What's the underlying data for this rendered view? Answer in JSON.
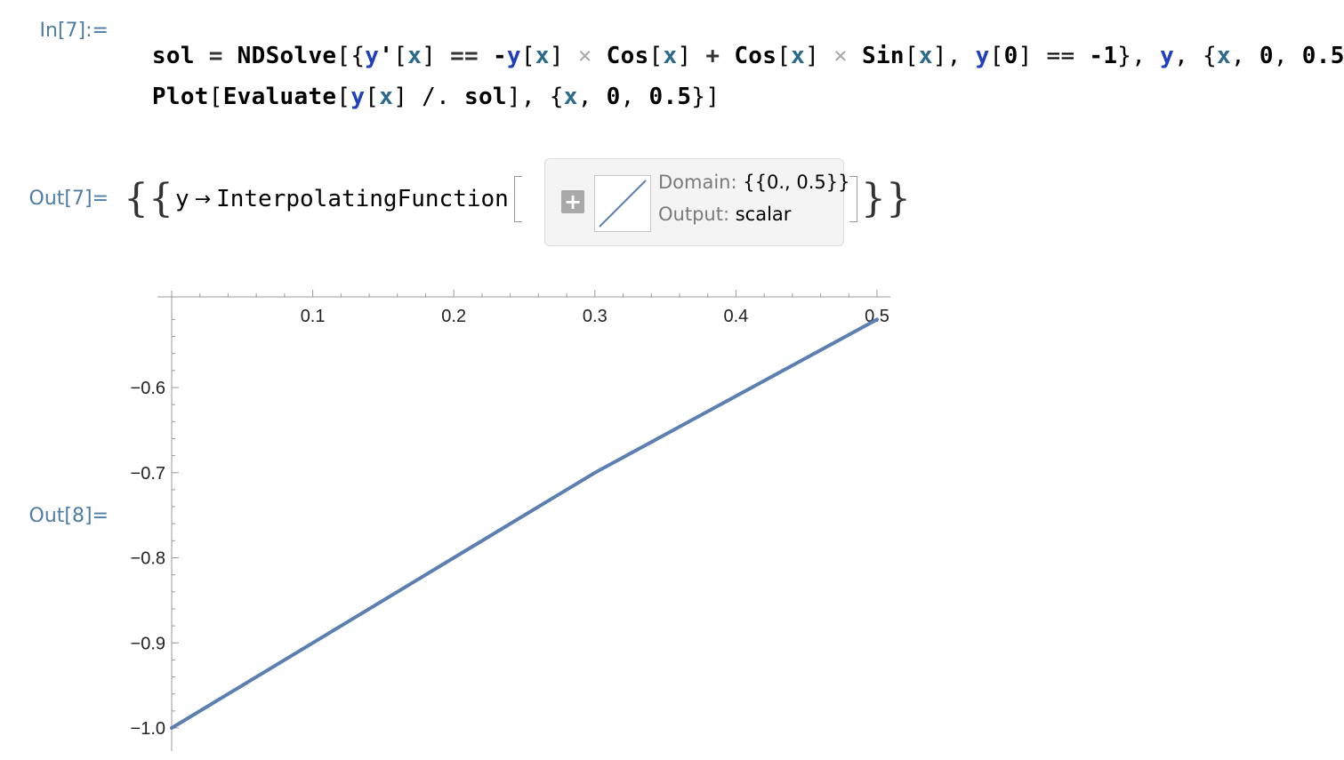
{
  "input": {
    "label": "In[7]:=",
    "line1": {
      "t01": "sol",
      "t02": " = ",
      "t03": "NDSolve",
      "t04": "[{",
      "t05": "y",
      "t06": "'",
      "t07": "[",
      "t08": "x",
      "t09": "]",
      "t10": " == ",
      "t11": "-",
      "t12": "y",
      "t13": "[",
      "t14": "x",
      "t15": "]",
      "t16": " × ",
      "t17": "Cos",
      "t18": "[",
      "t19": "x",
      "t20": "]",
      "t21": " + ",
      "t22": "Cos",
      "t23": "[",
      "t24": "x",
      "t25": "]",
      "t26": " × ",
      "t27": "Sin",
      "t28": "[",
      "t29": "x",
      "t30": "], ",
      "t31": "y",
      "t32": "[",
      "t33": "0",
      "t34": "] == ",
      "t35": "-",
      "t36": "1",
      "t37": "}, ",
      "t38": "y",
      "t39": ", {",
      "t40": "x",
      "t41": ", ",
      "t42": "0",
      "t43": ", ",
      "t44": "0.5",
      "t45": "}]"
    },
    "line2": {
      "t01": "Plot",
      "t02": "[",
      "t03": "Evaluate",
      "t04": "[",
      "t05": "y",
      "t06": "[",
      "t07": "x",
      "t08": "] /. ",
      "t09": "sol",
      "t10": "], {",
      "t11": "x",
      "t12": ", ",
      "t13": "0",
      "t14": ", ",
      "t15": "0.5",
      "t16": "}]"
    }
  },
  "output7": {
    "label": "Out[7]=",
    "symbol": "y",
    "arrow": "→",
    "head": "InterpolatingFunction",
    "open_curly": "{",
    "close_curly": "}",
    "plus": "+",
    "domain_key": "Domain:",
    "domain_value": "{{0., 0.5}}",
    "output_key": "Output:",
    "output_value": "scalar"
  },
  "output8": {
    "label": "Out[8]="
  },
  "colors": {
    "curve": "#5b7fb0",
    "label": "#4f7da3",
    "variable": "#2b6a8c",
    "symbol": "#1f3fbf"
  },
  "chart_data": {
    "type": "line",
    "x_ticks": [
      "0.1",
      "0.2",
      "0.3",
      "0.4",
      "0.5"
    ],
    "y_ticks": [
      "-0.6",
      "-0.7",
      "-0.8",
      "-0.9",
      "-1.0"
    ],
    "xlim": [
      0,
      0.5
    ],
    "ylim": [
      -1.0,
      -0.52
    ],
    "x_axis_position": "top",
    "grid": false,
    "series": [
      {
        "x": [
          0,
          0.1,
          0.2,
          0.3,
          0.4,
          0.5
        ],
        "y": [
          -1.0,
          -0.9,
          -0.8,
          -0.7,
          -0.61,
          -0.52
        ]
      }
    ]
  }
}
